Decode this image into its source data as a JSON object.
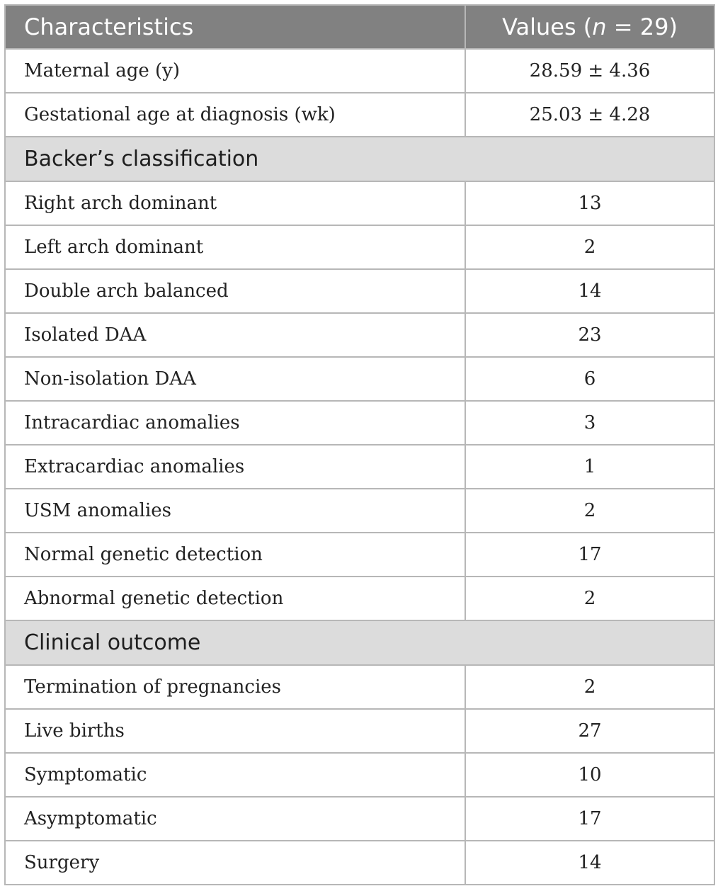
{
  "header": {
    "characteristics": "Characteristics",
    "values_prefix": "Values (",
    "values_n": "n",
    "values_suffix": " = 29)"
  },
  "rows_top": [
    {
      "label": "Maternal age (y)",
      "value": "28.59 ± 4.36"
    },
    {
      "label": "Gestational age at diagnosis (wk)",
      "value": "25.03 ± 4.28"
    }
  ],
  "section_backer": "Backer’s classification",
  "rows_backer": [
    {
      "label": "Right arch dominant",
      "value": "13"
    },
    {
      "label": "Left arch dominant",
      "value": "2"
    },
    {
      "label": "Double arch balanced",
      "value": "14"
    },
    {
      "label": "Isolated DAA",
      "value": "23"
    },
    {
      "label": "Non-isolation DAA",
      "value": "6"
    },
    {
      "label": "Intracardiac anomalies",
      "value": "3"
    },
    {
      "label": "Extracardiac anomalies",
      "value": "1"
    },
    {
      "label": "USM anomalies",
      "value": "2"
    },
    {
      "label": "Normal genetic detection",
      "value": "17"
    },
    {
      "label": "Abnormal genetic detection",
      "value": "2"
    }
  ],
  "section_outcome": "Clinical outcome",
  "rows_outcome": [
    {
      "label": "Termination of pregnancies",
      "value": "2"
    },
    {
      "label": "Live births",
      "value": "27"
    },
    {
      "label": "Symptomatic",
      "value": "10"
    },
    {
      "label": "Asymptomatic",
      "value": "17"
    },
    {
      "label": "Surgery",
      "value": "14"
    }
  ]
}
